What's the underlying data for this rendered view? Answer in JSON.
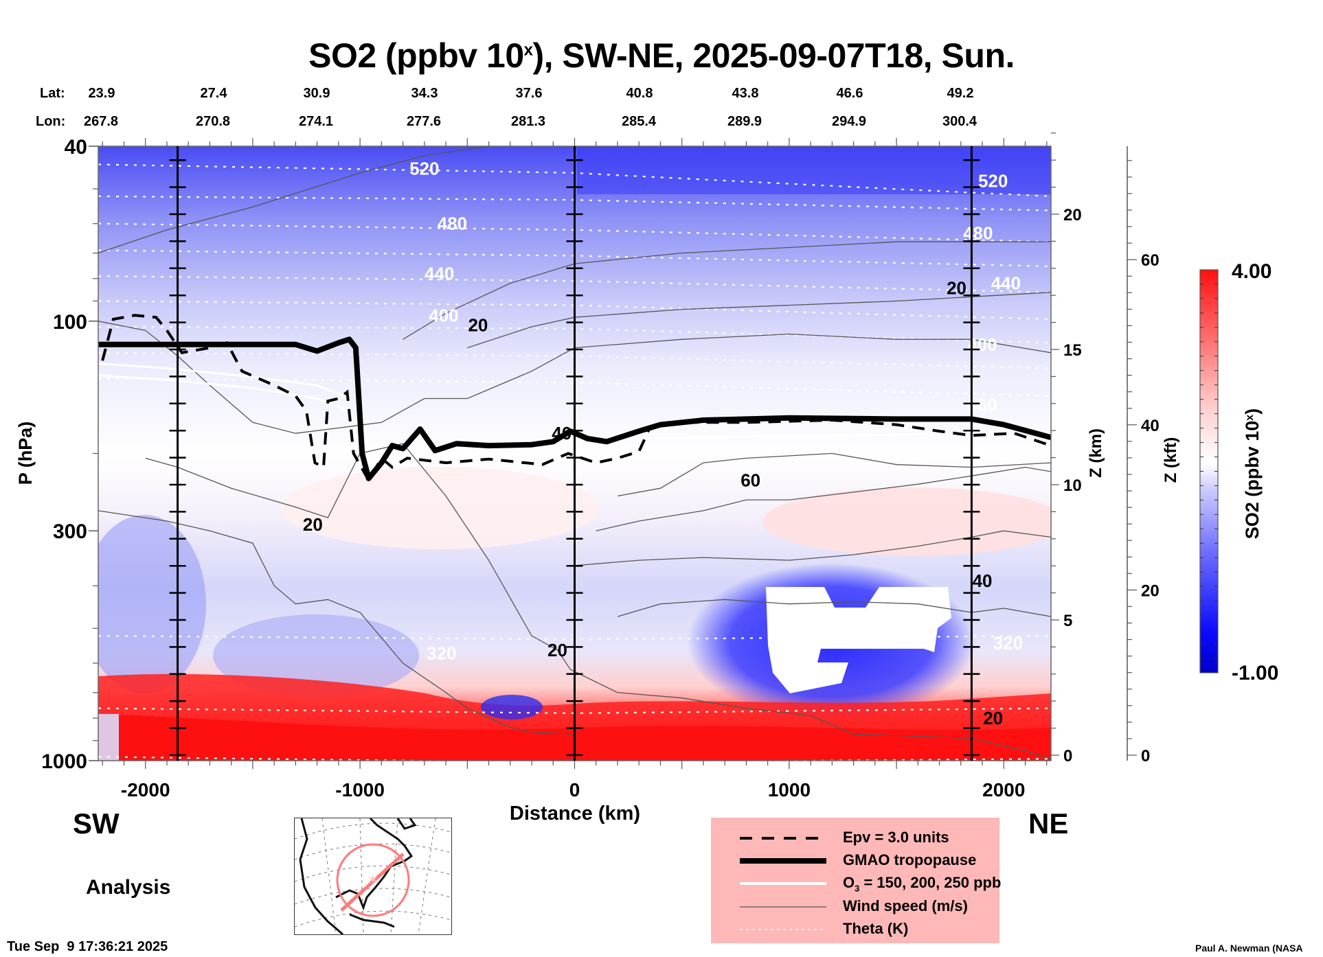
{
  "title": {
    "main": "SO2 (ppbv 10",
    "sup": "x",
    "rest": "), SW-NE, 2025-09-07T18, Sun."
  },
  "header": {
    "lat_label": "Lat:",
    "lon_label": "Lon:",
    "lat": [
      "23.9",
      "27.4",
      "30.9",
      "34.3",
      "37.6",
      "40.8",
      "43.8",
      "46.6",
      "49.2"
    ],
    "lon": [
      "267.8",
      "270.8",
      "274.1",
      "277.6",
      "281.3",
      "285.4",
      "289.9",
      "294.9",
      "300.4"
    ]
  },
  "labels": {
    "sw": "SW",
    "ne": "NE",
    "analysis": "Analysis",
    "timestamp": "Tue Sep  9 17:36:21 2025",
    "credit": "Paul A. Newman (NASA"
  },
  "legend": {
    "items": [
      {
        "label": "Epv = 3.0 units",
        "style": "dashed-black"
      },
      {
        "label": "GMAO tropopause",
        "style": "thick-black"
      },
      {
        "label": "O",
        "sub": "3",
        "label_rest": " = 150, 200, 250 ppb",
        "style": "white"
      },
      {
        "label": "Wind speed (m/s)",
        "style": "thin-gray"
      },
      {
        "label": "Theta (K)",
        "style": "dotted-white"
      }
    ]
  },
  "colors": {
    "max": "#ff1010",
    "mid": "#ffffff",
    "min": "#0000d0",
    "legend_bg": "#ffb8b8",
    "map_track": "#ff7a7a"
  },
  "chart_data": {
    "type": "heatmap",
    "title": "SO2 (ppbv 10^x), SW-NE, 2025-09-07T18, Sun.",
    "xlabel": "Distance (km)",
    "ylabel": "P (hPa)",
    "y2label": "Z (km)",
    "y3label": "Z (kft)",
    "colorbar_label": "SO2 (ppbv 10^x)",
    "xlim": [
      -2220,
      2220
    ],
    "ylim": [
      1000,
      40
    ],
    "yscale": "log",
    "xticks": [
      -2000,
      -1000,
      0,
      1000,
      2000
    ],
    "yticks": [
      40,
      100,
      300,
      1000
    ],
    "zkm_ticks": [
      0,
      5,
      10,
      15,
      20
    ],
    "zkft_ticks": [
      0,
      20,
      40,
      60
    ],
    "colorbar": {
      "min": -1.0,
      "max": 4.0,
      "min_label": "-1.00",
      "max_label": "4.00"
    },
    "vertical_markers_km": [
      -1850,
      0,
      1850
    ],
    "theta_labels": [
      {
        "value": "520",
        "x": -700,
        "p": 45
      },
      {
        "value": "480",
        "x": -570,
        "p": 60
      },
      {
        "value": "440",
        "x": -630,
        "p": 78
      },
      {
        "value": "400",
        "x": -610,
        "p": 97
      },
      {
        "value": "320",
        "x": -620,
        "p": 570
      },
      {
        "value": "520",
        "x": 1950,
        "p": 48
      },
      {
        "value": "480",
        "x": 1880,
        "p": 63
      },
      {
        "value": "440",
        "x": 2010,
        "p": 82
      },
      {
        "value": "400",
        "x": 1900,
        "p": 113
      },
      {
        "value": "360",
        "x": 1900,
        "p": 155
      },
      {
        "value": "320",
        "x": 2020,
        "p": 540
      }
    ],
    "wind_labels": [
      {
        "value": "20",
        "x": -450,
        "p": 102
      },
      {
        "value": "20",
        "x": -1220,
        "p": 290
      },
      {
        "value": "20",
        "x": -80,
        "p": 560
      },
      {
        "value": "40",
        "x": -60,
        "p": 180
      },
      {
        "value": "60",
        "x": 820,
        "p": 230
      },
      {
        "value": "40",
        "x": 1900,
        "p": 390
      },
      {
        "value": "20",
        "x": 1780,
        "p": 84
      },
      {
        "value": "20",
        "x": 1950,
        "p": 800
      }
    ],
    "tropopause_p": [
      [
        -2220,
        113
      ],
      [
        -1900,
        113
      ],
      [
        -1300,
        113
      ],
      [
        -1200,
        117
      ],
      [
        -1100,
        112
      ],
      [
        -1050,
        110
      ],
      [
        -1020,
        115
      ],
      [
        -990,
        200
      ],
      [
        -960,
        228
      ],
      [
        -900,
        210
      ],
      [
        -850,
        192
      ],
      [
        -800,
        195
      ],
      [
        -720,
        176
      ],
      [
        -650,
        197
      ],
      [
        -550,
        190
      ],
      [
        -400,
        192
      ],
      [
        -200,
        191
      ],
      [
        -100,
        188
      ],
      [
        -20,
        178
      ],
      [
        60,
        185
      ],
      [
        150,
        188
      ],
      [
        300,
        178
      ],
      [
        400,
        172
      ],
      [
        600,
        168
      ],
      [
        1000,
        166
      ],
      [
        1500,
        167
      ],
      [
        1850,
        167
      ],
      [
        2000,
        172
      ],
      [
        2150,
        180
      ],
      [
        2220,
        184
      ]
    ],
    "epv_p": [
      [
        -2200,
        123
      ],
      [
        -2150,
        99
      ],
      [
        -2050,
        97
      ],
      [
        -1950,
        98
      ],
      [
        -1900,
        105
      ],
      [
        -1830,
        118
      ],
      [
        -1700,
        115
      ],
      [
        -1620,
        112
      ],
      [
        -1550,
        130
      ],
      [
        -1400,
        140
      ],
      [
        -1300,
        148
      ],
      [
        -1250,
        160
      ],
      [
        -1210,
        210
      ],
      [
        -1170,
        215
      ],
      [
        -1150,
        152
      ],
      [
        -1100,
        150
      ],
      [
        -1060,
        145
      ],
      [
        -1030,
        200
      ],
      [
        -960,
        230
      ],
      [
        -900,
        205
      ],
      [
        -850,
        215
      ],
      [
        -780,
        205
      ],
      [
        -600,
        210
      ],
      [
        -400,
        206
      ],
      [
        -150,
        212
      ],
      [
        -30,
        200
      ],
      [
        100,
        210
      ],
      [
        200,
        205
      ],
      [
        300,
        198
      ],
      [
        350,
        175
      ],
      [
        500,
        170
      ],
      [
        800,
        170
      ],
      [
        1200,
        168
      ],
      [
        1500,
        172
      ],
      [
        1700,
        178
      ],
      [
        1850,
        182
      ],
      [
        2050,
        180
      ],
      [
        2220,
        192
      ]
    ],
    "map_inset": {
      "track": "SW-NE",
      "center_lat": 37.6,
      "center_lon": 281.3
    }
  }
}
